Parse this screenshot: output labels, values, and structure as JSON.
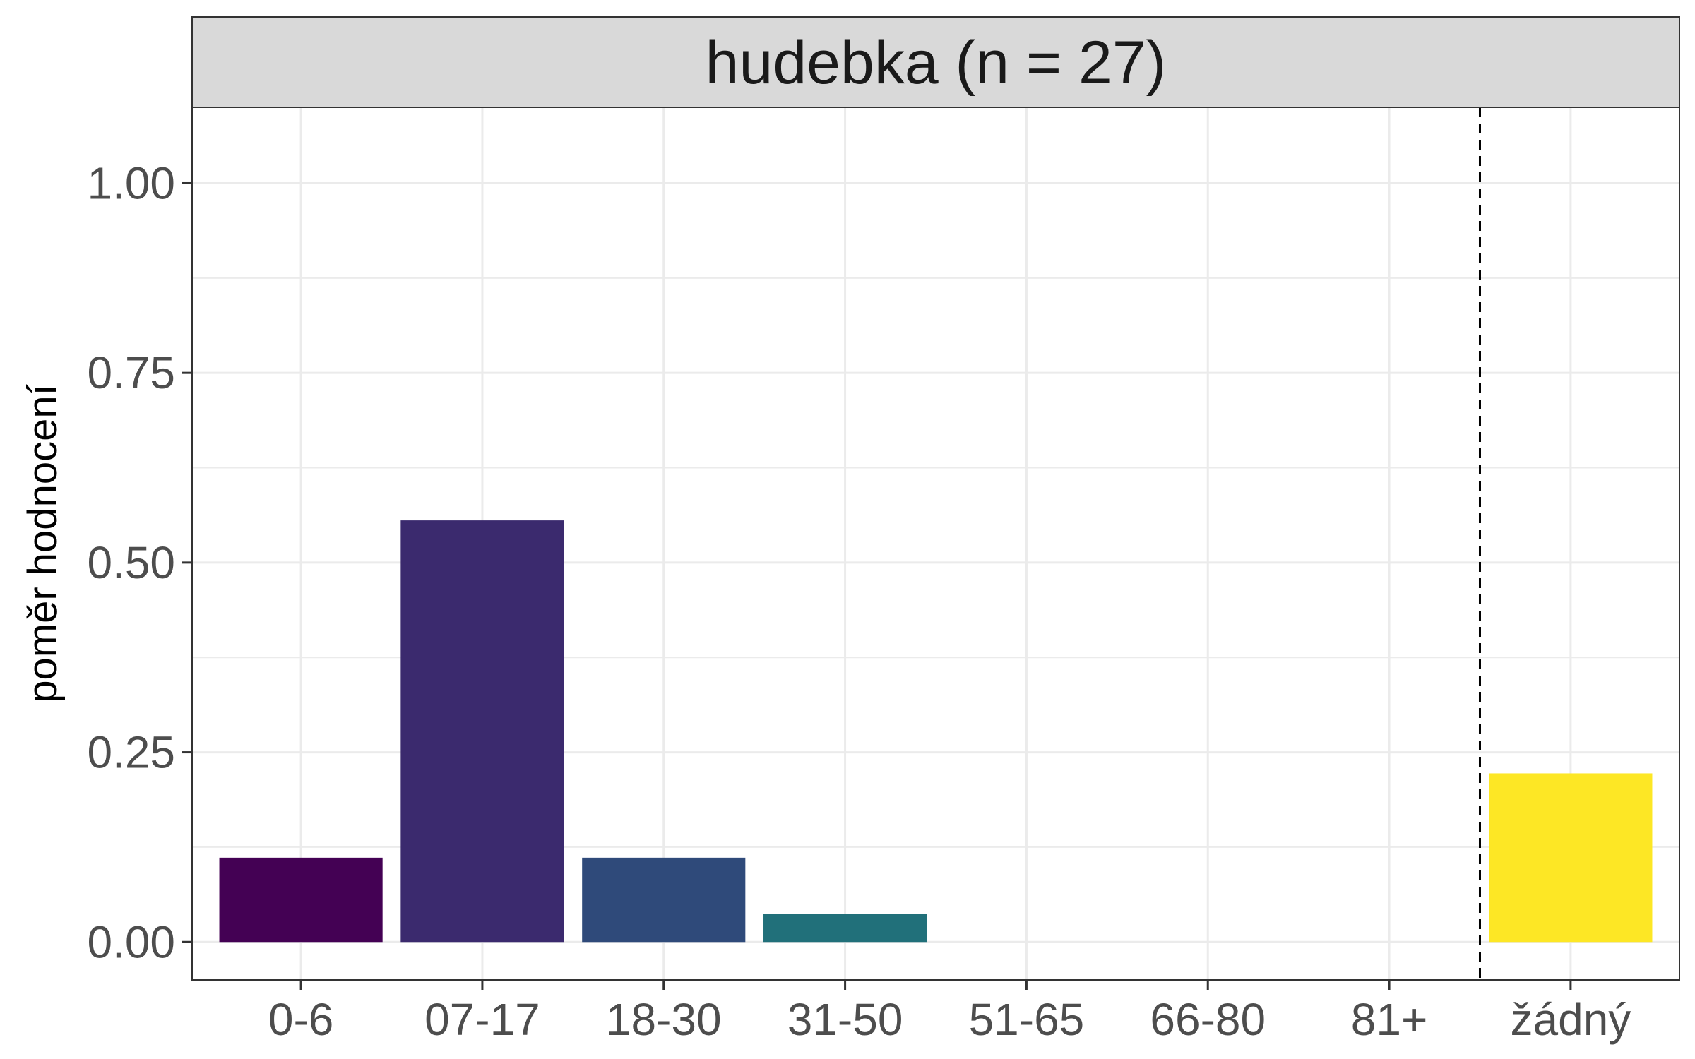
{
  "chart_data": {
    "type": "bar",
    "facet_title": "hudebka (n = 27)",
    "categories": [
      "0-6",
      "07-17",
      "18-30",
      "31-50",
      "51-65",
      "66-80",
      "81+",
      "žádný"
    ],
    "values": [
      0.1111,
      0.5556,
      0.1111,
      0.037,
      0.0,
      0.0,
      0.0,
      0.2222
    ],
    "colors": [
      "#440154",
      "#3b2a6e",
      "#2f4a7a",
      "#21707a",
      "#1f9a8a",
      "#5ec962",
      "#addc30",
      "#fde725"
    ],
    "xlabel": "",
    "ylabel": "poměr hodnocení",
    "ylim": [
      -0.05,
      1.1
    ],
    "yticks": [
      0.0,
      0.25,
      0.5,
      0.75,
      1.0
    ],
    "ytick_labels": [
      "0.00",
      "0.25",
      "0.50",
      "0.75",
      "1.00"
    ],
    "reference_line": {
      "style": "dashed",
      "between_categories": [
        "81+",
        "žádný"
      ]
    },
    "grid": true,
    "legend": "none"
  }
}
